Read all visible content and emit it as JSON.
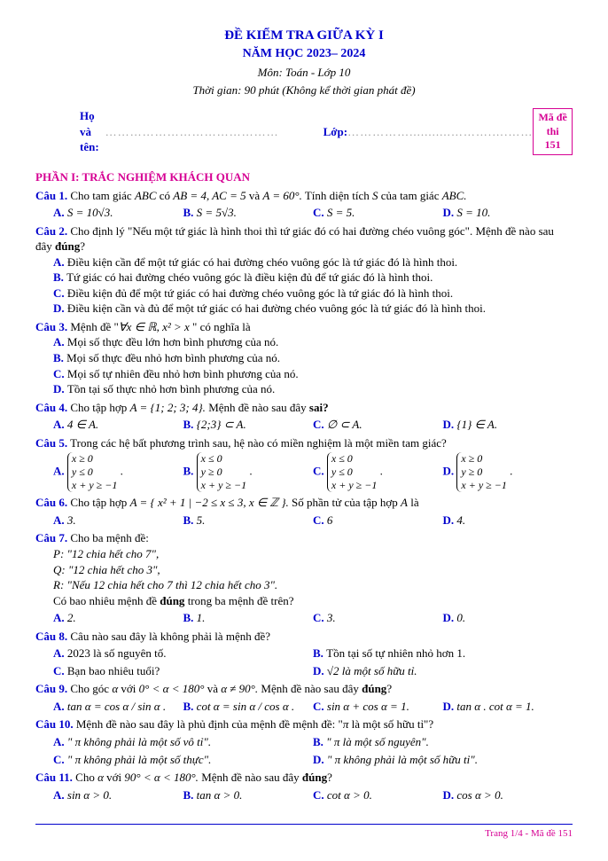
{
  "header": {
    "title1": "ĐỀ KIỂM TRA GIỮA KỲ I",
    "title2": "NĂM HỌC 2023– 2024",
    "subject": "Môn: Toán - Lớp 10",
    "time": "Thời gian: 90 phút (Không kể thời gian phát đề)",
    "name_label": "Họ và tên:",
    "name_dots": "……………………………………",
    "class_label": "Lớp:",
    "class_dots": "……………...........……….….……",
    "code_label": "Mã đề thi",
    "code_value": "151"
  },
  "section1": "PHẦN I: TRẮC NGHIỆM KHÁCH QUAN",
  "q1": {
    "label": "Câu 1.",
    "text_a": " Cho tam giác ",
    "abc": "ABC",
    "text_b": " có ",
    "eq1": "AB = 4, AC = 5",
    "text_c": " và ",
    "eq2": "A = 60°.",
    "text_d": " Tính diện tích ",
    "sym": "S",
    "text_e": " của tam giác ",
    "abc2": "ABC.",
    "a": "S = 10√3.",
    "b": "S = 5√3.",
    "c": "S = 5.",
    "d": "S = 10."
  },
  "q2": {
    "label": "Câu 2.",
    "text": " Cho định lý \"Nếu một tứ giác là hình thoi thì tứ giác đó có hai đường chéo vuông góc\". Mệnh đề nào sau đây ",
    "bold": "đúng",
    "qm": "?",
    "a": "Điều kiện cần để một tứ giác có hai đường chéo vuông góc là tứ giác đó là hình thoi.",
    "b": "Tứ giác có hai đường chéo vuông góc là điều kiện đủ để tứ giác đó là hình thoi.",
    "c": "Điều kiện đủ để một tứ giác có hai đường chéo vuông góc là tứ giác đó là hình thoi.",
    "d": "Điều kiện cần và đủ để một tứ giác có hai đường chéo vuông góc là tứ giác đó là hình thoi."
  },
  "q3": {
    "label": "Câu 3.",
    "text_a": " Mệnh đề \"",
    "eq": "∀x ∈ ℝ, x² > x",
    "text_b": " \" có nghĩa là",
    "a": "Mọi số thực đều lớn hơn bình phương của nó.",
    "b": "Mọi số thực đều nhỏ hơn bình phương của nó.",
    "c": "Mọi số tự nhiên đều nhỏ hơn bình phương của nó.",
    "d": "Tồn tại số thực nhỏ hơn bình phương của nó."
  },
  "q4": {
    "label": "Câu 4.",
    "text_a": " Cho tập hợp ",
    "eq": "A = {1; 2; 3; 4}.",
    "text_b": " Mệnh đề nào sau đây ",
    "bold": "sai?",
    "a": "4 ∈ A.",
    "b": "{2;3} ⊂ A.",
    "c": "∅ ⊂ A.",
    "d": "{1} ∈ A."
  },
  "q5": {
    "label": "Câu 5.",
    "text": " Trong các hệ bất phương trình sau, hệ nào có miền nghiệm là một miền tam giác?",
    "a1": "x ≥ 0",
    "a2": "y ≤ 0",
    "a3": "x + y ≥ −1",
    "b1": "x ≤ 0",
    "b2": "y ≥ 0",
    "b3": "x + y ≥ −1",
    "c1": "x ≤ 0",
    "c2": "y ≤ 0",
    "c3": "x + y ≥ −1",
    "d1": "x ≥ 0",
    "d2": "y ≥ 0",
    "d3": "x + y ≥ −1"
  },
  "q6": {
    "label": "Câu 6.",
    "text_a": " Cho tập hợp ",
    "eq": "A = { x² + 1 | −2 ≤ x ≤ 3, x ∈ ℤ }.",
    "text_b": " Số phần tử của tập hợp ",
    "sym": "A",
    "text_c": " là",
    "a": "3.",
    "b": "5.",
    "c": "6",
    "d": "4."
  },
  "q7": {
    "label": "Câu 7.",
    "text": " Cho ba mệnh đề:",
    "p": "P: \"12 chia hết cho 7\",",
    "q": "Q: \"12 chia hết cho 3\",",
    "r": "R: \"Nếu 12 chia hết cho 7 thì 12 chia hết cho 3\".",
    "ask_a": "Có bao nhiêu mệnh đề ",
    "bold": "đúng",
    "ask_b": " trong ba mệnh đề trên?",
    "a": "2.",
    "b": "1.",
    "c": "3.",
    "d": "0."
  },
  "q8": {
    "label": "Câu 8.",
    "text": " Câu nào sau đây là không phải là mệnh đề?",
    "a": "2023 là số nguyên tố.",
    "b": "Tồn tại số tự nhiên nhỏ hơn 1.",
    "c": "Bạn bao nhiêu tuổi?",
    "d": "√2 là một số hữu tỉ."
  },
  "q9": {
    "label": "Câu 9.",
    "text_a": " Cho góc ",
    "alpha1": "α",
    "text_b": " với ",
    "eq1": "0° < α < 180°",
    "text_c": " và ",
    "eq2": "α ≠ 90°.",
    "text_d": " Mệnh đề nào sau đây ",
    "bold": "đúng",
    "qm": "?",
    "a": "tan α = cos α / sin α .",
    "b": "cot α = sin α / cos α .",
    "c": "sin α + cos α = 1.",
    "d": "tan α . cot α = 1."
  },
  "q10": {
    "label": "Câu 10.",
    "text_a": " Mệnh đề nào sau đây là phủ định của mệnh đề mệnh đề: \"",
    "pi": "π",
    "text_b": " là một số hữu tỉ\"?",
    "a": "\" π  không phải là một số vô tỉ\".",
    "b": "\" π  là một số nguyên\".",
    "c": "\" π  không phải là một số thực\".",
    "d": "\" π  không phải là một số hữu tỉ\"."
  },
  "q11": {
    "label": "Câu 11.",
    "text_a": " Cho ",
    "alpha": "α",
    "text_b": " với ",
    "eq": "90° < α < 180°.",
    "text_c": " Mệnh đề nào sau đây ",
    "bold": "đúng",
    "qm": "?",
    "a": "sin α > 0.",
    "b": "tan α > 0.",
    "c": "cot α > 0.",
    "d": "cos α > 0."
  },
  "footer": "Trang 1/4 - Mã đề 151"
}
